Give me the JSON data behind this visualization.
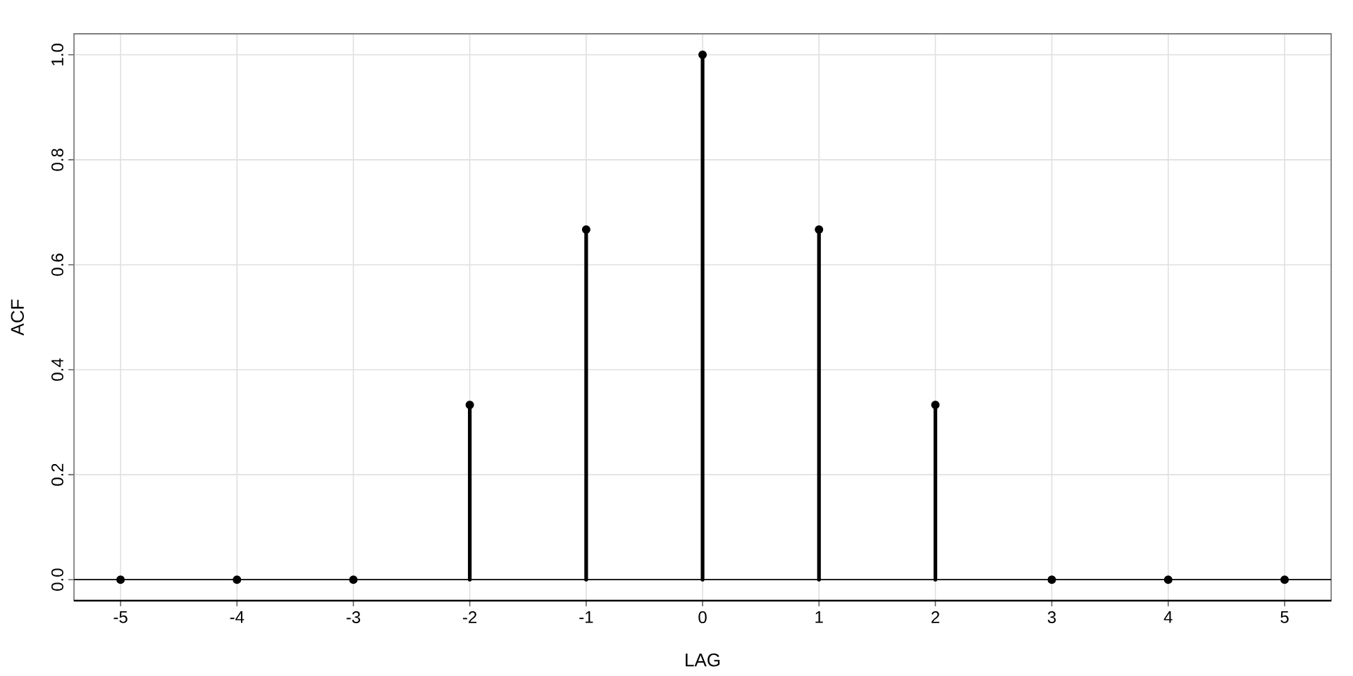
{
  "chart_data": {
    "type": "lollipop",
    "xlabel": "LAG",
    "ylabel": "ACF",
    "x": [
      -5,
      -4,
      -3,
      -2,
      -1,
      0,
      1,
      2,
      3,
      4,
      5
    ],
    "values": [
      0,
      0,
      0,
      0.333,
      0.667,
      1,
      0.667,
      0.333,
      0,
      0,
      0
    ],
    "color": "#000000",
    "xlim": [
      -5.4,
      5.4
    ],
    "ylim": [
      -0.04,
      1.04
    ],
    "xticks": [
      -5,
      -4,
      -3,
      -2,
      -1,
      0,
      1,
      2,
      3,
      4,
      5
    ],
    "yticks": [
      {
        "value": 0,
        "label": "0.0"
      },
      {
        "value": 0.2,
        "label": "0.2"
      },
      {
        "value": 0.4,
        "label": "0.4"
      },
      {
        "value": 0.6,
        "label": "0.6"
      },
      {
        "value": 0.8,
        "label": "0.8"
      },
      {
        "value": 1,
        "label": "1.0"
      }
    ],
    "grid": true,
    "marker": "circle",
    "ref_lines": [
      {
        "axis": "y",
        "value": 0,
        "color": "#000000"
      }
    ]
  }
}
